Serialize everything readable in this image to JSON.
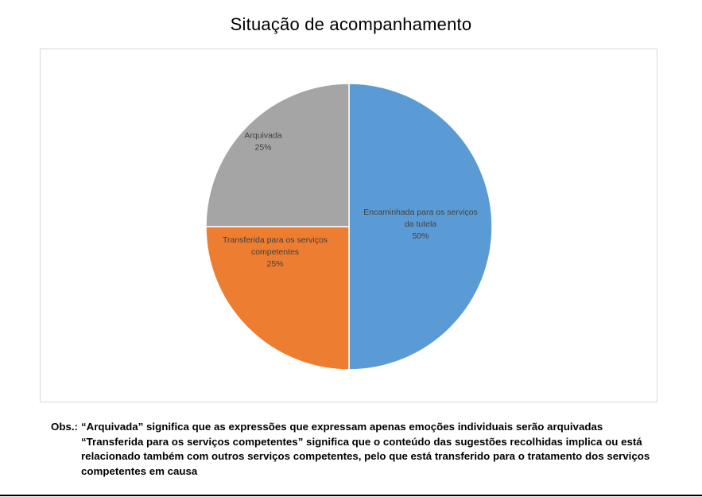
{
  "chart_data": {
    "type": "pie",
    "title": "Situação de acompanhamento",
    "slices": [
      {
        "label_lines": [
          "Encaminhada para os serviços",
          "da tutela"
        ],
        "percent_label": "50%",
        "value": 50,
        "color": "#5b9bd5"
      },
      {
        "label_lines": [
          "Transferida para os serviços",
          "competentes"
        ],
        "percent_label": "25%",
        "value": 25,
        "color": "#ed7d31"
      },
      {
        "label_lines": [
          "Arquivada"
        ],
        "percent_label": "25%",
        "value": 25,
        "color": "#a5a5a5"
      }
    ]
  },
  "notes": {
    "prefix": "Obs.:",
    "line1": "“Arquivada” significa que as expressões que expressam apenas emoções individuais serão arquivadas",
    "line2": "“Transferida para os serviços competentes” significa que o conteúdo das sugestões recolhidas implica ou está relacionado também com outros serviços competentes, pelo que está transferido para o tratamento dos serviços competentes em causa"
  }
}
